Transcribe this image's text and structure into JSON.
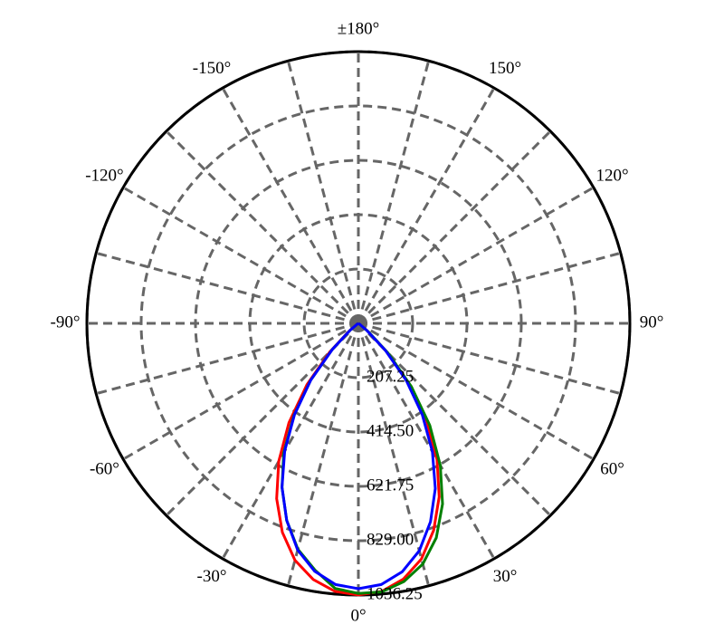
{
  "chart_data": {
    "type": "polar",
    "x": [
      -90,
      -85,
      -80,
      -75,
      -70,
      -65,
      -60,
      -55,
      -50,
      -45,
      -40,
      -35,
      -30,
      -25,
      -20,
      -15,
      -10,
      -5,
      0,
      5,
      10,
      15,
      20,
      25,
      30,
      35,
      40,
      45,
      50,
      55,
      60,
      65,
      70,
      75,
      80,
      85,
      90
    ],
    "series": [
      {
        "name": "red",
        "color": "#ff0000",
        "values": [
          0,
          0,
          0,
          0,
          0,
          0,
          0,
          8,
          48,
          155,
          305,
          462,
          608,
          738,
          848,
          935,
          992,
          1026,
          1036,
          1026,
          990,
          930,
          840,
          730,
          600,
          455,
          300,
          150,
          45,
          5,
          0,
          0,
          0,
          0,
          0,
          0,
          0
        ]
      },
      {
        "name": "green",
        "color": "#008000",
        "values": [
          0,
          0,
          0,
          0,
          0,
          0,
          0,
          5,
          42,
          142,
          285,
          430,
          570,
          690,
          800,
          892,
          955,
          1015,
          1030,
          1028,
          1000,
          950,
          870,
          760,
          625,
          475,
          315,
          160,
          50,
          6,
          0,
          0,
          0,
          0,
          0,
          0,
          0
        ]
      },
      {
        "name": "blue",
        "color": "#0000ff",
        "values": [
          0,
          0,
          0,
          0,
          0,
          0,
          0,
          5,
          40,
          140,
          282,
          425,
          562,
          690,
          800,
          895,
          960,
          1000,
          1012,
          1000,
          962,
          898,
          805,
          695,
          565,
          425,
          285,
          145,
          42,
          5,
          0,
          0,
          0,
          0,
          0,
          0,
          0
        ]
      }
    ],
    "rlim": [
      0,
      1036.25
    ],
    "rticks": [
      207.25,
      {
        "value": 414.5,
        "label": "414.50"
      },
      621.75,
      {
        "value": 829,
        "label": "829.00"
      },
      1036.25
    ],
    "angleticks": [
      {
        "value": 0,
        "label": "0°"
      },
      {
        "value": 30,
        "label": "30°"
      },
      {
        "value": 60,
        "label": "60°"
      },
      {
        "value": 90,
        "label": "90°"
      },
      {
        "value": 120,
        "label": "120°"
      },
      {
        "value": 150,
        "label": "150°"
      },
      {
        "value": 180,
        "label": "±180°"
      },
      {
        "value": -150,
        "label": "-150°"
      },
      {
        "value": -120,
        "label": "-120°"
      },
      {
        "value": -90,
        "label": "-90°"
      },
      {
        "value": -60,
        "label": "-60°"
      },
      {
        "value": -30,
        "label": "-30°"
      }
    ],
    "grid": true
  }
}
